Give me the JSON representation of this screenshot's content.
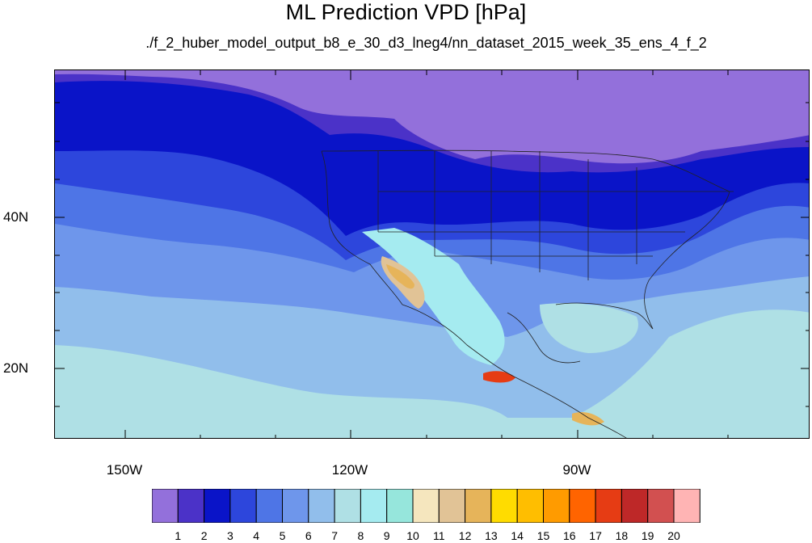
{
  "title": "ML Prediction VPD [hPa]",
  "subtitle": "./f_2_huber_model_output_b8_e_30_d3_lneg4/nn_dataset_2015_week_35_ens_4_f_2",
  "lat_labels": [
    "40N",
    "20N"
  ],
  "lon_labels": [
    "150W",
    "120W",
    "90W"
  ],
  "colorbar": {
    "colors": [
      "#9370DB",
      "#4B32C8",
      "#0A14C8",
      "#2D46DC",
      "#4E75E6",
      "#6E96EB",
      "#91BEEB",
      "#AFE0E5",
      "#A5EBF0",
      "#96E6DC",
      "#F5E6BE",
      "#E1C396",
      "#E6B45A",
      "#FFDC00",
      "#FFBE00",
      "#FF9B00",
      "#FF6400",
      "#E63C14",
      "#BE2828",
      "#D25050",
      "#FFB4B4"
    ],
    "labels": [
      "1",
      "2",
      "3",
      "4",
      "5",
      "6",
      "7",
      "8",
      "9",
      "10",
      "11",
      "12",
      "13",
      "14",
      "15",
      "16",
      "17",
      "18",
      "19",
      "20"
    ]
  }
}
